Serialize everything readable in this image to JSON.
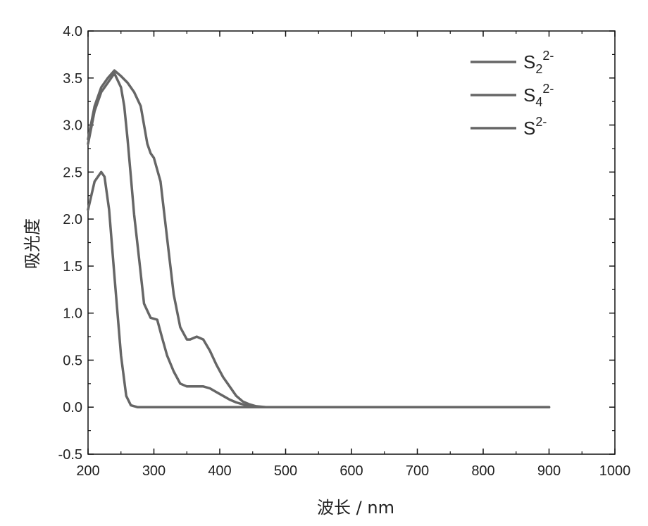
{
  "chart_data": {
    "type": "line",
    "xlabel": "波长 / nm",
    "ylabel": "吸光度",
    "xlim": [
      200,
      1000
    ],
    "ylim": [
      -0.5,
      4.0
    ],
    "x_ticks": [
      "200",
      "300",
      "400",
      "500",
      "600",
      "700",
      "800",
      "900",
      "1000"
    ],
    "y_ticks": [
      "-0.5",
      "0.0",
      "0.5",
      "1.0",
      "1.5",
      "2.0",
      "2.5",
      "3.0",
      "3.5",
      "4.0"
    ],
    "legend_position": "top-right",
    "grid": false,
    "colors": {
      "line": "#666666",
      "axis": "#111111",
      "background": "#ffffff"
    },
    "series": [
      {
        "name": "S2 2-",
        "label_base": "S",
        "label_sub": "2",
        "label_sup": "2-",
        "x": [
          200,
          210,
          220,
          225,
          232,
          240,
          250,
          258,
          265,
          275,
          300,
          400,
          500,
          600,
          700,
          800,
          900
        ],
        "y": [
          2.1,
          2.4,
          2.5,
          2.45,
          2.1,
          1.4,
          0.55,
          0.12,
          0.02,
          0.0,
          0.0,
          0.0,
          0.0,
          0.0,
          0.0,
          0.0,
          0.0
        ]
      },
      {
        "name": "S4 2-",
        "label_base": "S",
        "label_sub": "4",
        "label_sup": "2-",
        "x": [
          200,
          210,
          220,
          230,
          240,
          250,
          255,
          260,
          265,
          270,
          278,
          285,
          295,
          305,
          312,
          320,
          330,
          340,
          350,
          360,
          375,
          385,
          395,
          405,
          415,
          425,
          440,
          460,
          500,
          600,
          700,
          800,
          900
        ],
        "y": [
          2.8,
          3.15,
          3.35,
          3.45,
          3.55,
          3.4,
          3.2,
          2.85,
          2.45,
          2.05,
          1.55,
          1.1,
          0.95,
          0.93,
          0.75,
          0.55,
          0.38,
          0.25,
          0.22,
          0.22,
          0.22,
          0.2,
          0.16,
          0.12,
          0.08,
          0.05,
          0.02,
          0.0,
          0.0,
          0.0,
          0.0,
          0.0,
          0.0
        ]
      },
      {
        "name": "S 2-",
        "label_base": "S",
        "label_sub": "",
        "label_sup": "2-",
        "x": [
          200,
          210,
          220,
          230,
          240,
          250,
          260,
          270,
          280,
          290,
          295,
          300,
          310,
          320,
          330,
          340,
          350,
          355,
          365,
          375,
          385,
          395,
          405,
          415,
          425,
          435,
          445,
          455,
          470,
          500,
          600,
          700,
          800,
          900
        ],
        "y": [
          2.85,
          3.2,
          3.4,
          3.5,
          3.58,
          3.52,
          3.45,
          3.35,
          3.2,
          2.8,
          2.7,
          2.65,
          2.4,
          1.8,
          1.2,
          0.85,
          0.72,
          0.72,
          0.75,
          0.72,
          0.6,
          0.45,
          0.32,
          0.22,
          0.12,
          0.06,
          0.03,
          0.01,
          0.0,
          0.0,
          0.0,
          0.0,
          0.0,
          0.0
        ]
      }
    ]
  }
}
